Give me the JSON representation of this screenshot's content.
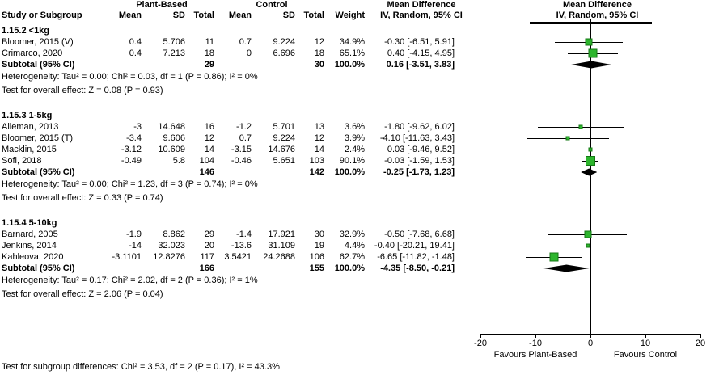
{
  "colors": {
    "marker": "#2DB52D",
    "marker_border": "#157815",
    "diamond": "#000000",
    "axis": "#000000"
  },
  "header": {
    "study": "Study or Subgroup",
    "group1": "Plant-Based",
    "group2": "Control",
    "mean": "Mean",
    "sd": "SD",
    "total": "Total",
    "weight": "Weight",
    "md_line1": "Mean Difference",
    "md_line2": "IV, Random, 95% CI",
    "plot_line1": "Mean Difference",
    "plot_line2": "IV, Random, 95% CI"
  },
  "chart_data": {
    "type": "forest",
    "x_axis": {
      "min": -20,
      "max": 20,
      "ticks": [
        -20,
        -10,
        0,
        10,
        20
      ],
      "label_left": "Favours Plant-Based",
      "label_right": "Favours Control"
    },
    "subgroups": [
      {
        "name": "1.15.2 <1kg",
        "studies": [
          {
            "label": "Bloomer, 2015 (V)",
            "mean1": "0.4",
            "sd1": "5.706",
            "n1": "11",
            "mean2": "0.7",
            "sd2": "9.224",
            "n2": "12",
            "weight": "34.9%",
            "weight_val": 34.9,
            "ci": "-0.30 [-6.51, 5.91]",
            "md": -0.3,
            "lo": -6.51,
            "hi": 5.91
          },
          {
            "label": "Crimarco, 2020",
            "mean1": "0.4",
            "sd1": "7.213",
            "n1": "18",
            "mean2": "0",
            "sd2": "6.696",
            "n2": "18",
            "weight": "65.1%",
            "weight_val": 65.1,
            "ci": "0.40 [-4.15, 4.95]",
            "md": 0.4,
            "lo": -4.15,
            "hi": 4.95
          }
        ],
        "subtotal": {
          "label": "Subtotal (95% CI)",
          "n1": "29",
          "n2": "30",
          "weight": "100.0%",
          "ci": "0.16 [-3.51, 3.83]",
          "md": 0.16,
          "lo": -3.51,
          "hi": 3.83
        },
        "heterogeneity": "Heterogeneity: Tau² = 0.00; Chi² = 0.03, df = 1 (P = 0.86); I² = 0%",
        "overall": "Test for overall effect: Z = 0.08 (P = 0.93)"
      },
      {
        "name": "1.15.3 1-5kg",
        "studies": [
          {
            "label": "Alleman, 2013",
            "mean1": "-3",
            "sd1": "14.648",
            "n1": "16",
            "mean2": "-1.2",
            "sd2": "5.701",
            "n2": "13",
            "weight": "3.6%",
            "weight_val": 3.6,
            "ci": "-1.80 [-9.62, 6.02]",
            "md": -1.8,
            "lo": -9.62,
            "hi": 6.02
          },
          {
            "label": "Bloomer, 2015 (T)",
            "mean1": "-3.4",
            "sd1": "9.606",
            "n1": "12",
            "mean2": "0.7",
            "sd2": "9.224",
            "n2": "12",
            "weight": "3.9%",
            "weight_val": 3.9,
            "ci": "-4.10 [-11.63, 3.43]",
            "md": -4.1,
            "lo": -11.63,
            "hi": 3.43
          },
          {
            "label": "Macklin, 2015",
            "mean1": "-3.12",
            "sd1": "10.609",
            "n1": "14",
            "mean2": "-3.15",
            "sd2": "14.676",
            "n2": "14",
            "weight": "2.4%",
            "weight_val": 2.4,
            "ci": "0.03 [-9.46, 9.52]",
            "md": 0.03,
            "lo": -9.46,
            "hi": 9.52
          },
          {
            "label": "Sofi, 2018",
            "mean1": "-0.49",
            "sd1": "5.8",
            "n1": "104",
            "mean2": "-0.46",
            "sd2": "5.651",
            "n2": "103",
            "weight": "90.1%",
            "weight_val": 90.1,
            "ci": "-0.03 [-1.59, 1.53]",
            "md": -0.03,
            "lo": -1.59,
            "hi": 1.53
          }
        ],
        "subtotal": {
          "label": "Subtotal (95% CI)",
          "n1": "146",
          "n2": "142",
          "weight": "100.0%",
          "ci": "-0.25 [-1.73, 1.23]",
          "md": -0.25,
          "lo": -1.73,
          "hi": 1.23
        },
        "heterogeneity": "Heterogeneity: Tau² = 0.00; Chi² = 1.23, df = 3 (P = 0.74); I² = 0%",
        "overall": "Test for overall effect: Z = 0.33 (P = 0.74)"
      },
      {
        "name": "1.15.4 5-10kg",
        "studies": [
          {
            "label": "Barnard, 2005",
            "mean1": "-1.9",
            "sd1": "8.862",
            "n1": "29",
            "mean2": "-1.4",
            "sd2": "17.921",
            "n2": "30",
            "weight": "32.9%",
            "weight_val": 32.9,
            "ci": "-0.50 [-7.68, 6.68]",
            "md": -0.5,
            "lo": -7.68,
            "hi": 6.68
          },
          {
            "label": "Jenkins, 2014",
            "mean1": "-14",
            "sd1": "32.023",
            "n1": "20",
            "mean2": "-13.6",
            "sd2": "31.109",
            "n2": "19",
            "weight": "4.4%",
            "weight_val": 4.4,
            "ci": "-0.40 [-20.21, 19.41]",
            "md": -0.4,
            "lo": -20.21,
            "hi": 19.41
          },
          {
            "label": "Kahleova, 2020",
            "mean1": "-3.1101",
            "sd1": "12.8276",
            "n1": "117",
            "mean2": "3.5421",
            "sd2": "24.2688",
            "n2": "106",
            "weight": "62.7%",
            "weight_val": 62.7,
            "ci": "-6.65 [-11.82, -1.48]",
            "md": -6.65,
            "lo": -11.82,
            "hi": -1.48
          }
        ],
        "subtotal": {
          "label": "Subtotal (95% CI)",
          "n1": "166",
          "n2": "155",
          "weight": "100.0%",
          "ci": "-4.35 [-8.50, -0.21]",
          "md": -4.35,
          "lo": -8.5,
          "hi": -0.21
        },
        "heterogeneity": "Heterogeneity: Tau² = 0.17; Chi² = 2.02, df = 2 (P = 0.36); I² = 1%",
        "overall": "Test for overall effect: Z = 2.06 (P = 0.04)"
      }
    ],
    "footer": "Test for subgroup differences: Chi² = 3.53, df = 2 (P = 0.17), I² = 43.3%"
  }
}
